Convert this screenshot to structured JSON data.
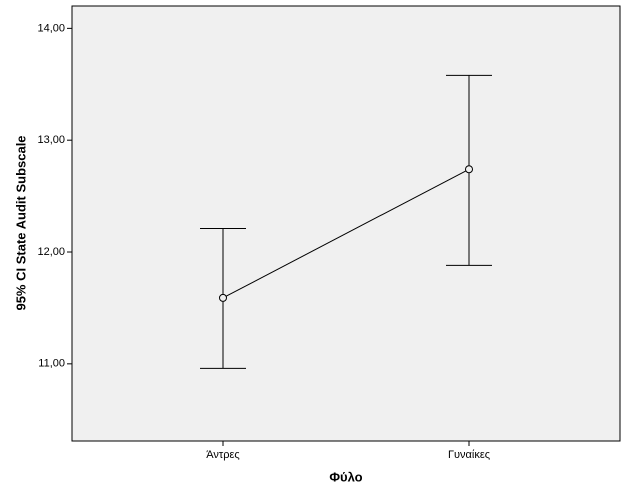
{
  "chart_data": {
    "type": "errorbar",
    "x_label": "Φύλο",
    "y_label": "95% CI State Audit Subscale",
    "categories": [
      "Άντρες",
      "Γυναίκες"
    ],
    "values": [
      11.59,
      12.74
    ],
    "lower": [
      10.96,
      11.88
    ],
    "upper": [
      12.21,
      13.58
    ],
    "color": "#000000",
    "ylim": [
      10.31,
      14.2
    ],
    "yticks": [
      {
        "value": 11,
        "label": "11,00"
      },
      {
        "value": 12,
        "label": "12,00"
      },
      {
        "value": 13,
        "label": "13,00"
      },
      {
        "value": 14,
        "label": "14,00"
      }
    ]
  }
}
